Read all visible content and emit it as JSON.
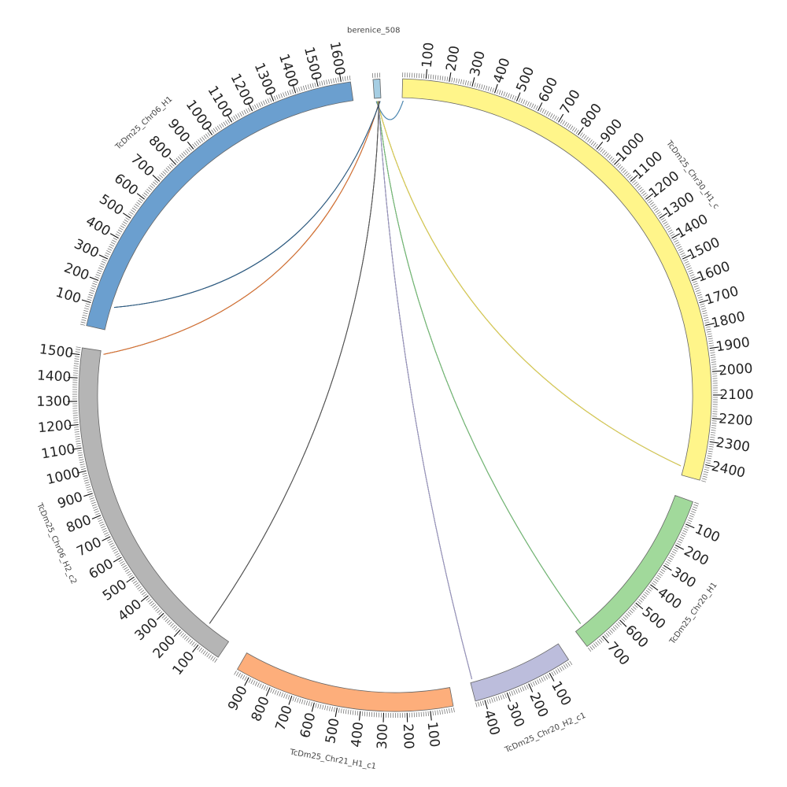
{
  "chart_data": {
    "type": "chord",
    "segments": [
      {
        "name": "berenice_508",
        "length": 30,
        "color": "#a6cee3",
        "label_step": 0
      },
      {
        "name": "TcDm25_Chr30_H1_c",
        "length": 2470,
        "color": "#fff58a",
        "label_step": 100
      },
      {
        "name": "TcDm25_Chr20_H1",
        "length": 780,
        "color": "#a1d99b",
        "label_step": 100
      },
      {
        "name": "TcDm25_Chr20_H2_c1",
        "length": 440,
        "color": "#bcbddc",
        "label_step": 100
      },
      {
        "name": "TcDm25_Chr21_H1_c1",
        "length": 960,
        "color": "#fdae7b",
        "label_step": 100
      },
      {
        "name": "TcDm25_Chr06_H2_c2",
        "length": 1530,
        "color": "#b5b5b5",
        "label_step": 100
      },
      {
        "name": "TcDm25_Chr06_H1",
        "length": 1640,
        "color": "#6b9fcf",
        "label_step": 100
      }
    ],
    "links": [
      {
        "from": "berenice_508",
        "from_pos": 8,
        "to": "TcDm25_Chr30_H1_c",
        "to_pos": 5,
        "color": "#4a90c2"
      },
      {
        "from": "berenice_508",
        "from_pos": 12,
        "to": "TcDm25_Chr30_H1_c",
        "to_pos": 2430,
        "color": "#e8d84a"
      },
      {
        "from": "berenice_508",
        "from_pos": 15,
        "to": "TcDm25_Chr20_H1",
        "to_pos": 740,
        "color": "#74c476"
      },
      {
        "from": "berenice_508",
        "from_pos": 18,
        "to": "TcDm25_Chr20_H2_c1",
        "to_pos": 430,
        "color": "#9e9ac8"
      },
      {
        "from": "berenice_508",
        "from_pos": 20,
        "to": "TcDm25_Chr06_H2_c2",
        "to_pos": 120,
        "color": "#555555"
      },
      {
        "from": "berenice_508",
        "from_pos": 23,
        "to": "TcDm25_Chr06_H2_c2",
        "to_pos": 1515,
        "color": "#e6732c"
      },
      {
        "from": "berenice_508",
        "from_pos": 26,
        "to": "TcDm25_Chr06_H1",
        "to_pos": 110,
        "color": "#2b5f8a"
      }
    ]
  }
}
